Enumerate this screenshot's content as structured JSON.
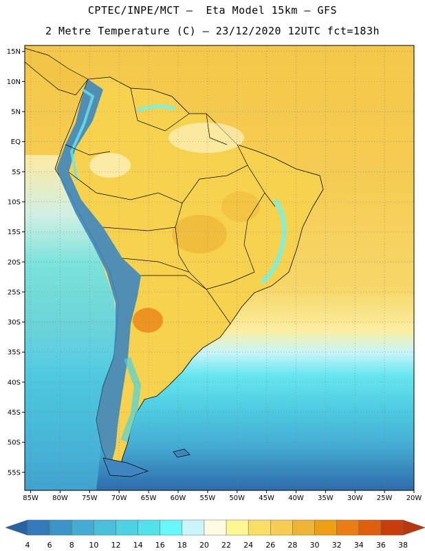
{
  "header": {
    "line1": "CPTEC/INPE/MCT –  Eta Model 15km – GFS",
    "line2": "2 Metre Temperature (C) – 23/12/2020 12UTC fct=183h"
  },
  "map": {
    "lat_labels": [
      "15N",
      "10N",
      "5N",
      "EQ",
      "5S",
      "10S",
      "15S",
      "20S",
      "25S",
      "30S",
      "35S",
      "40S",
      "45S",
      "50S",
      "55S"
    ],
    "lon_labels": [
      "85W",
      "80W",
      "75W",
      "70W",
      "65W",
      "60W",
      "55W",
      "50W",
      "45W",
      "40W",
      "35W",
      "30W",
      "25W",
      "20W"
    ],
    "extent": {
      "lon_min": -86,
      "lon_max": -20,
      "lat_min": -58,
      "lat_max": 16
    },
    "grid": "dotted",
    "colors": {
      "land_warm": "#f6d24e",
      "ocean_tropical": "#f4c84a",
      "ocean_south": "#4cc9dd",
      "andes": "#3e86c0",
      "border": "#000000"
    }
  },
  "colorbar": {
    "labels": [
      "4",
      "6",
      "8",
      "10",
      "12",
      "14",
      "16",
      "18",
      "20",
      "22",
      "24",
      "26",
      "28",
      "30",
      "32",
      "34",
      "36",
      "38"
    ],
    "colors": [
      "#2a61a2",
      "#347cb9",
      "#3d94c6",
      "#44acd3",
      "#49bfd9",
      "#4dd2e1",
      "#53e2ec",
      "#67f6fa",
      "#c9f5fb",
      "#fffbe0",
      "#fef690",
      "#f8e068",
      "#f4cd52",
      "#eeb534",
      "#ee9f13",
      "#ea7e14",
      "#de5f0c",
      "#c83e0b",
      "#b8380e"
    ]
  }
}
